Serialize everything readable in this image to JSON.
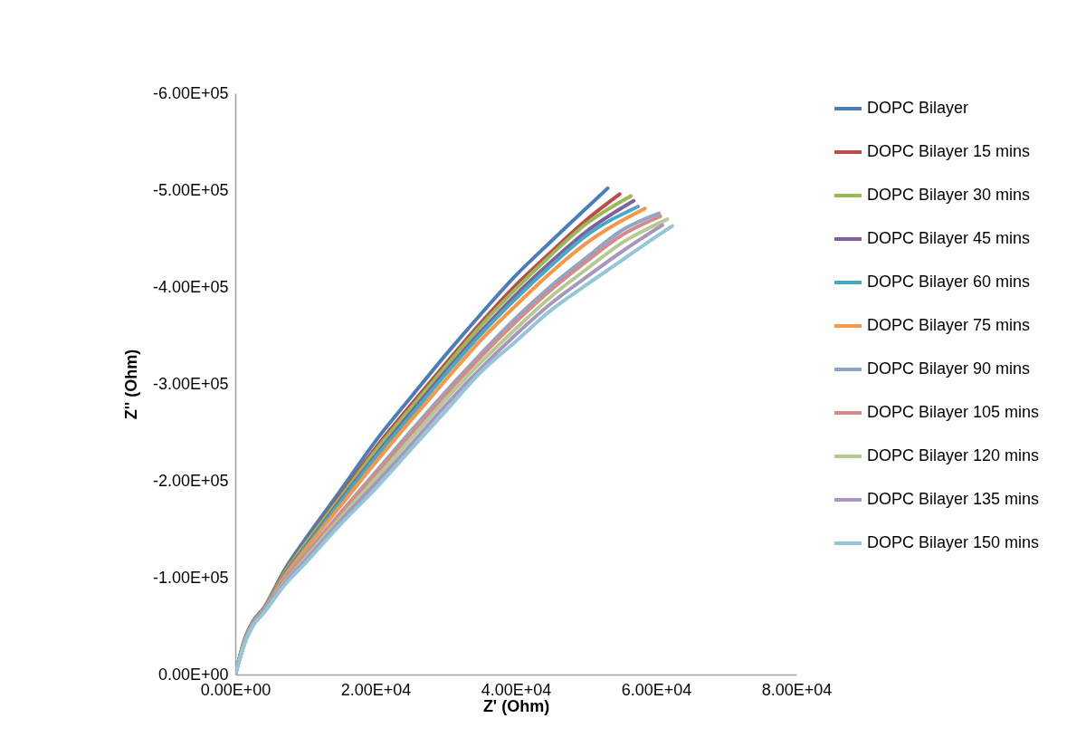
{
  "chart_data": {
    "type": "line",
    "xlabel": "Z' (Ohm)",
    "ylabel": "Z'' (Ohm)",
    "xlim": [
      0,
      80000
    ],
    "ylim": [
      0,
      -600000
    ],
    "xticks": [
      {
        "value": 0,
        "label": "0.00E+00"
      },
      {
        "value": 20000,
        "label": "2.00E+04"
      },
      {
        "value": 40000,
        "label": "4.00E+04"
      },
      {
        "value": 60000,
        "label": "6.00E+04"
      },
      {
        "value": 80000,
        "label": "8.00E+04"
      }
    ],
    "yticks": [
      {
        "value": 0,
        "label": "0.00E+00"
      },
      {
        "value": -100000,
        "label": "-1.00E+05"
      },
      {
        "value": -200000,
        "label": "-2.00E+05"
      },
      {
        "value": -300000,
        "label": "-3.00E+05"
      },
      {
        "value": -400000,
        "label": "-4.00E+05"
      },
      {
        "value": -500000,
        "label": "-5.00E+05"
      },
      {
        "value": -600000,
        "label": "-6.00E+05"
      }
    ],
    "grid": false,
    "legend": "right",
    "marker": "none",
    "line_style": "solid",
    "series": [
      {
        "name": "DOPC Bilayer",
        "color": "#4a7ebb",
        "x": [
          0,
          1500,
          2500,
          4000,
          7000,
          10000,
          15000,
          20000,
          25000,
          30000,
          35000,
          40000,
          45000,
          50000,
          53100
        ],
        "values": [
          0,
          -40000,
          -55000,
          -68000,
          -108000,
          -140000,
          -190000,
          -241000,
          -286000,
          -330000,
          -372000,
          -412000,
          -447000,
          -481000,
          -502000
        ]
      },
      {
        "name": "DOPC Bilayer 15 mins",
        "color": "#be4b48",
        "x": [
          0,
          1500,
          2500,
          4000,
          7000,
          10000,
          15000,
          20000,
          25000,
          30000,
          35000,
          40000,
          45000,
          50000,
          54800
        ],
        "values": [
          0,
          -39000,
          -54000,
          -67000,
          -106000,
          -136000,
          -185000,
          -234000,
          -278000,
          -321000,
          -363000,
          -402000,
          -436000,
          -469000,
          -496000
        ]
      },
      {
        "name": "DOPC Bilayer 30 mins",
        "color": "#98b954",
        "x": [
          0,
          1500,
          2500,
          4000,
          7000,
          10000,
          15000,
          20000,
          25000,
          30000,
          35000,
          40000,
          45000,
          50000,
          56400
        ],
        "values": [
          0,
          -39000,
          -54000,
          -67000,
          -105000,
          -135000,
          -183000,
          -231000,
          -275000,
          -318000,
          -360000,
          -398000,
          -433000,
          -465000,
          -494000
        ]
      },
      {
        "name": "DOPC Bilayer 45 mins",
        "color": "#7d60a0",
        "x": [
          0,
          1500,
          2500,
          4000,
          7000,
          10000,
          15000,
          20000,
          25000,
          30000,
          35000,
          40000,
          45000,
          50000,
          56800
        ],
        "values": [
          0,
          -38000,
          -53000,
          -66000,
          -103000,
          -132000,
          -180000,
          -226000,
          -270000,
          -313000,
          -354000,
          -392000,
          -426000,
          -457000,
          -489000
        ]
      },
      {
        "name": "DOPC Bilayer 60 mins",
        "color": "#46aac5",
        "x": [
          0,
          1500,
          2500,
          4000,
          7000,
          10000,
          15000,
          20000,
          25000,
          30000,
          35000,
          40000,
          45000,
          50000,
          57400
        ],
        "values": [
          0,
          -38000,
          -53000,
          -66000,
          -102000,
          -131000,
          -178000,
          -224000,
          -267000,
          -310000,
          -351000,
          -388000,
          -422000,
          -453000,
          -483000
        ]
      },
      {
        "name": "DOPC Bilayer 75 mins",
        "color": "#f79646",
        "x": [
          0,
          1500,
          2500,
          4000,
          7000,
          10000,
          15000,
          20000,
          25000,
          30000,
          35000,
          40000,
          45000,
          50000,
          58400
        ],
        "values": [
          0,
          -38000,
          -53000,
          -66000,
          -101000,
          -129000,
          -174000,
          -219000,
          -262000,
          -304000,
          -345000,
          -381000,
          -415000,
          -445000,
          -481000
        ]
      },
      {
        "name": "DOPC Bilayer 90 mins",
        "color": "#8ea5cb",
        "x": [
          0,
          1500,
          2500,
          4000,
          7000,
          10000,
          15000,
          20000,
          25000,
          30000,
          35000,
          40000,
          45000,
          50000,
          55000,
          60400
        ],
        "values": [
          0,
          -37000,
          -52000,
          -65000,
          -98000,
          -124000,
          -167000,
          -209000,
          -251000,
          -292000,
          -331000,
          -368000,
          -401000,
          -430000,
          -458000,
          -476000
        ]
      },
      {
        "name": "DOPC Bilayer 105 mins",
        "color": "#d48b8a",
        "x": [
          0,
          1500,
          2500,
          4000,
          7000,
          10000,
          15000,
          20000,
          25000,
          30000,
          35000,
          40000,
          45000,
          50000,
          55000,
          60600
        ],
        "values": [
          0,
          -36000,
          -51000,
          -64000,
          -97000,
          -122000,
          -166000,
          -207000,
          -248000,
          -289000,
          -328000,
          -364000,
          -397000,
          -426000,
          -453000,
          -473000
        ]
      },
      {
        "name": "DOPC Bilayer 120 mins",
        "color": "#b5ca92",
        "x": [
          0,
          1500,
          2500,
          4000,
          7000,
          10000,
          15000,
          20000,
          25000,
          30000,
          35000,
          40000,
          45000,
          50000,
          55000,
          61600
        ],
        "values": [
          0,
          -36000,
          -51000,
          -64000,
          -95000,
          -120000,
          -162000,
          -202000,
          -243000,
          -284000,
          -322000,
          -357000,
          -390000,
          -418000,
          -445000,
          -470000
        ]
      },
      {
        "name": "DOPC Bilayer 135 mins",
        "color": "#a797bf",
        "x": [
          0,
          1500,
          2500,
          4000,
          7000,
          10000,
          15000,
          20000,
          25000,
          30000,
          35000,
          40000,
          45000,
          50000,
          55000,
          60900
        ],
        "values": [
          0,
          -36000,
          -51000,
          -64000,
          -94000,
          -118000,
          -159000,
          -197000,
          -237000,
          -278000,
          -316000,
          -351000,
          -383000,
          -410000,
          -436000,
          -464000
        ]
      },
      {
        "name": "DOPC Bilayer 150 mins",
        "color": "#93c6d9",
        "x": [
          0,
          1500,
          2500,
          4000,
          7000,
          10000,
          15000,
          20000,
          25000,
          30000,
          35000,
          40000,
          45000,
          50000,
          55000,
          60000,
          62300
        ],
        "values": [
          0,
          -35000,
          -50000,
          -63000,
          -92000,
          -115000,
          -155000,
          -192000,
          -232000,
          -272000,
          -312000,
          -344000,
          -376000,
          -402000,
          -427000,
          -452000,
          -463000
        ]
      }
    ]
  }
}
